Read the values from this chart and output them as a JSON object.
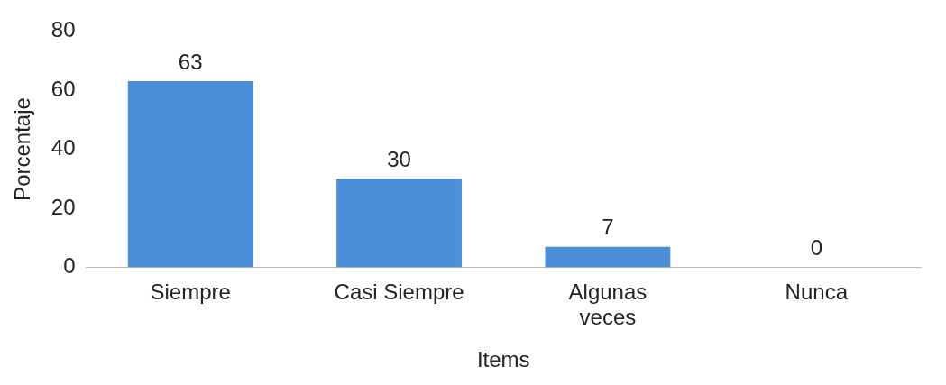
{
  "chart_data": {
    "type": "bar",
    "xlabel": "Items",
    "ylabel": "Porcentaje",
    "categories": [
      "Siempre",
      "Casi Siempre",
      "Algunas veces",
      "Nunca"
    ],
    "values": [
      63,
      30,
      7,
      0
    ],
    "colors": [
      "#4a8fd8",
      "#4a8fd8",
      "#4a8fd8",
      "#1f2d3d"
    ],
    "ylim": [
      0,
      80
    ],
    "yticks": [
      0,
      20,
      40,
      60,
      80
    ],
    "grid": false,
    "legend": false,
    "data_labels": true
  }
}
